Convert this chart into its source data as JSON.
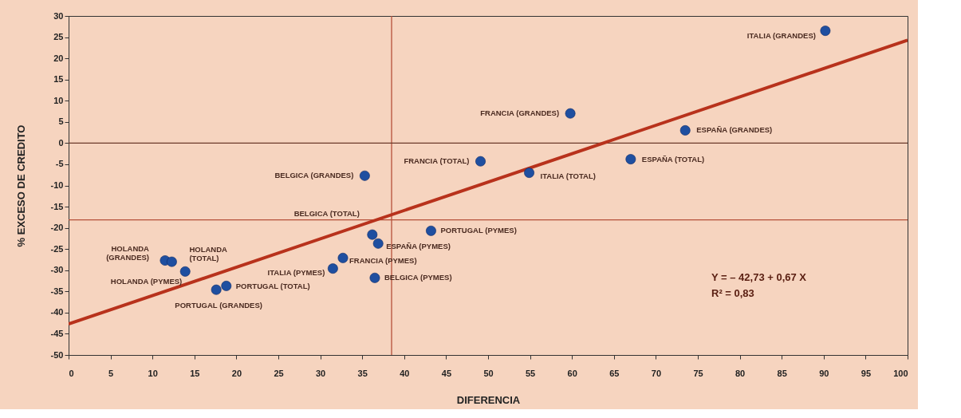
{
  "chart_data": {
    "type": "scatter",
    "xlabel": "DIFERENCIA",
    "ylabel": "% EXCESO DE CREDITO",
    "xlim": [
      0,
      100
    ],
    "xticks": [
      0,
      5,
      10,
      15,
      20,
      25,
      30,
      35,
      40,
      45,
      50,
      55,
      60,
      65,
      70,
      75,
      80,
      85,
      90,
      95,
      100
    ],
    "ylim": [
      -50,
      30
    ],
    "yticks": [
      -50,
      -45,
      -40,
      -35,
      -30,
      -25,
      -20,
      -15,
      -10,
      -5,
      0,
      5,
      10,
      15,
      20,
      25,
      30
    ],
    "grid": false,
    "marker": "circle",
    "series": [
      {
        "color": "#1f4fa0",
        "x": [
          90.2,
          59.8,
          73.5,
          67.0,
          54.9,
          49.1,
          35.3,
          36.2,
          43.2,
          36.9,
          32.7,
          31.5,
          36.5,
          11.5,
          12.3,
          13.9,
          18.8,
          17.6
        ],
        "values": [
          26.5,
          7.0,
          3.0,
          -3.8,
          -7.0,
          -4.3,
          -7.7,
          -21.6,
          -20.7,
          -23.7,
          -27.1,
          -29.6,
          -31.8,
          -27.7,
          -28.0,
          -30.3,
          -33.7,
          -34.6
        ]
      },
      {
        "type": "line",
        "marker": "none",
        "color": "#b8321c",
        "x": [
          0,
          100
        ],
        "values": [
          -42.7,
          24.3
        ]
      }
    ],
    "ref_lines": [
      {
        "axis": "x",
        "value": 38.5,
        "color": "#b5503a"
      },
      {
        "axis": "y",
        "value": -18.1,
        "color": "#b5503a"
      },
      {
        "axis": "y",
        "value": 0,
        "color": "#6b3a2a"
      }
    ],
    "annotations": [
      {
        "text": "ITALIA (GRANDES)",
        "x": 90.2,
        "y": 26.5
      },
      {
        "text": "FRANCIA (GRANDES)",
        "x": 59.8,
        "y": 7.0
      },
      {
        "text": "ESPAÑA (GRANDES)",
        "x": 73.5,
        "y": 3.0
      },
      {
        "text": "ESPAÑA (TOTAL)",
        "x": 67.0,
        "y": -3.8
      },
      {
        "text": "ITALIA (TOTAL)",
        "x": 54.9,
        "y": -7.0
      },
      {
        "text": "FRANCIA (TOTAL)",
        "x": 49.1,
        "y": -4.3
      },
      {
        "text": "BELGICA (GRANDES)",
        "x": 35.3,
        "y": -7.7
      },
      {
        "text": "BELGICA (TOTAL)",
        "x": 36.2,
        "y": -21.6
      },
      {
        "text": "PORTUGAL (PYMES)",
        "x": 43.2,
        "y": -20.7
      },
      {
        "text": "ESPAÑA (PYMES)",
        "x": 36.9,
        "y": -23.7
      },
      {
        "text": "FRANCIA (PYMES)",
        "x": 32.7,
        "y": -27.1
      },
      {
        "text": "ITALIA (PYMES)",
        "x": 31.5,
        "y": -29.6
      },
      {
        "text": "BELGICA (PYMES)",
        "x": 36.5,
        "y": -31.8
      },
      {
        "text": "HOLANDA (GRANDES)",
        "x": 11.5,
        "y": -27.7
      },
      {
        "text": "HOLANDA (TOTAL)",
        "x": 12.3,
        "y": -28.0
      },
      {
        "text": "HOLANDA (PYMES)",
        "x": 13.9,
        "y": -30.3
      },
      {
        "text": "PORTUGAL (TOTAL)",
        "x": 18.8,
        "y": -33.7
      },
      {
        "text": "PORTUGAL (GRANDES)",
        "x": 17.6,
        "y": -34.6
      },
      "Y = – 42,73 + 0,67 X",
      "R² = 0,83"
    ]
  }
}
